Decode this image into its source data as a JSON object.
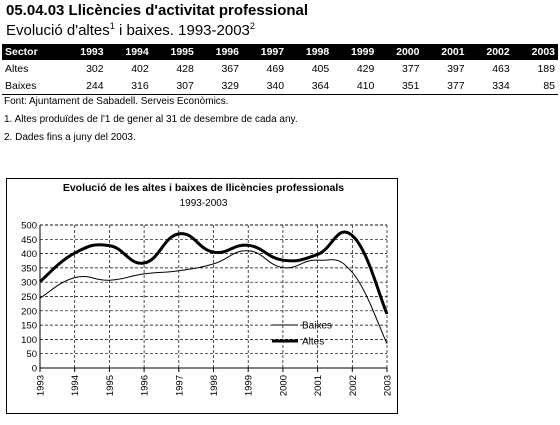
{
  "page": {
    "title": "05.04.03 Llicències d'activitat professional",
    "subtitle_main": "Evolució d'altes",
    "subtitle_sup1": "1",
    "subtitle_mid": " i baixes. 1993-2003",
    "subtitle_sup2": "2"
  },
  "table": {
    "header_label": "Sector",
    "years": [
      "1993",
      "1994",
      "1995",
      "1996",
      "1997",
      "1998",
      "1999",
      "2000",
      "2001",
      "2002",
      "2003"
    ],
    "rows": [
      {
        "label": "Altes",
        "values": [
          "302",
          "402",
          "428",
          "367",
          "469",
          "405",
          "429",
          "377",
          "397",
          "463",
          "189"
        ]
      },
      {
        "label": "Baixes",
        "values": [
          "244",
          "316",
          "307",
          "329",
          "340",
          "364",
          "410",
          "351",
          "377",
          "334",
          "85"
        ]
      }
    ]
  },
  "notes": {
    "source": "Font: Ajuntament de Sabadell. Serveis Econòmics.",
    "note1": "1. Altes produïdes de l'1 de gener al 31 de desembre de cada any.",
    "note2": "2. Dades fins a juny del 2003."
  },
  "chart_data": {
    "type": "line",
    "title": "Evolució de les altes i baixes de llicències professionals",
    "subtitle": "1993-2003",
    "categories": [
      "1993",
      "1994",
      "1995",
      "1996",
      "1997",
      "1998",
      "1999",
      "2000",
      "2001",
      "2002",
      "2003"
    ],
    "series": [
      {
        "name": "Baixes",
        "values": [
          244,
          316,
          307,
          329,
          340,
          364,
          410,
          351,
          377,
          334,
          85
        ],
        "color": "#000000",
        "line": "thin"
      },
      {
        "name": "Altes",
        "values": [
          302,
          402,
          428,
          367,
          469,
          405,
          429,
          377,
          397,
          463,
          189
        ],
        "color": "#000000",
        "line": "thick"
      }
    ],
    "ylim": [
      0,
      500
    ],
    "yticks": [
      0,
      50,
      100,
      150,
      200,
      250,
      300,
      350,
      400,
      450,
      500
    ],
    "grid": "dashed horizontal and vertical",
    "legend": "right"
  }
}
